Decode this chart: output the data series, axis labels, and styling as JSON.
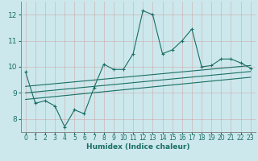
{
  "title": "",
  "xlabel": "Humidex (Indice chaleur)",
  "ylabel": "",
  "bg_color": "#cce8ec",
  "grid_color": "#b0cccc",
  "line_color": "#1a6e64",
  "x_data": [
    0,
    1,
    2,
    3,
    4,
    5,
    6,
    7,
    8,
    9,
    10,
    11,
    12,
    13,
    14,
    15,
    16,
    17,
    18,
    19,
    20,
    21,
    22,
    23
  ],
  "y_main": [
    9.8,
    8.6,
    8.7,
    8.5,
    7.7,
    8.35,
    8.2,
    9.2,
    10.1,
    9.9,
    9.9,
    10.5,
    12.15,
    12.0,
    10.5,
    10.65,
    11.0,
    11.45,
    10.0,
    10.05,
    10.3,
    10.3,
    10.15,
    9.95
  ],
  "ylim": [
    7.5,
    12.5
  ],
  "xlim": [
    -0.5,
    23.5
  ],
  "yticks": [
    8,
    9,
    10,
    11,
    12
  ],
  "xticks": [
    0,
    1,
    2,
    3,
    4,
    5,
    6,
    7,
    8,
    9,
    10,
    11,
    12,
    13,
    14,
    15,
    16,
    17,
    18,
    19,
    20,
    21,
    22,
    23
  ],
  "reg_line1": [
    [
      0,
      9.25
    ],
    [
      23,
      10.05
    ]
  ],
  "reg_line2": [
    [
      0,
      9.0
    ],
    [
      23,
      9.82
    ]
  ],
  "reg_line3": [
    [
      0,
      8.75
    ],
    [
      23,
      9.6
    ]
  ]
}
